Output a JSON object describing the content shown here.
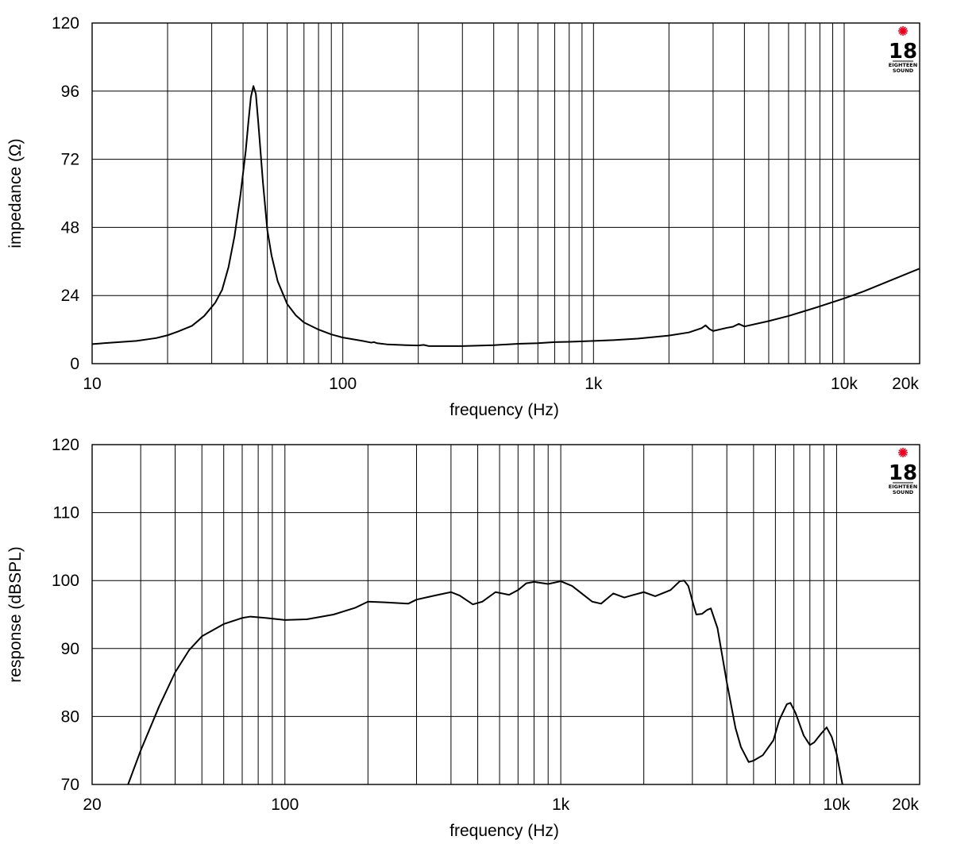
{
  "chart_data": [
    {
      "type": "line",
      "xscale": "log",
      "xlim": [
        10,
        20000
      ],
      "ylim": [
        0,
        120
      ],
      "xlabel": "frequency (Hz)",
      "ylabel": "impedance (Ω)",
      "x_ticks": [
        {
          "value": 10,
          "label": "10"
        },
        {
          "value": 100,
          "label": "100"
        },
        {
          "value": 1000,
          "label": "1k"
        },
        {
          "value": 10000,
          "label": "10k"
        },
        {
          "value": 20000,
          "label": "20k"
        }
      ],
      "y_ticks": [
        {
          "value": 0,
          "label": "0"
        },
        {
          "value": 24,
          "label": "24"
        },
        {
          "value": 48,
          "label": "48"
        },
        {
          "value": 72,
          "label": "72"
        },
        {
          "value": 96,
          "label": "96"
        },
        {
          "value": 120,
          "label": "120"
        }
      ],
      "grid": true,
      "series": [
        {
          "color": "#000000",
          "points": [
            [
              10,
              6.9
            ],
            [
              12,
              7.4
            ],
            [
              15,
              8.0
            ],
            [
              18,
              9.0
            ],
            [
              20,
              10.0
            ],
            [
              22,
              11.3
            ],
            [
              25,
              13.3
            ],
            [
              28,
              16.8
            ],
            [
              31,
              21.5
            ],
            [
              33,
              26.0
            ],
            [
              35,
              34.0
            ],
            [
              37,
              45.0
            ],
            [
              39,
              59.0
            ],
            [
              41,
              75.0
            ],
            [
              42,
              85.0
            ],
            [
              43,
              94.0
            ],
            [
              44,
              97.8
            ],
            [
              45,
              95.0
            ],
            [
              46,
              85.0
            ],
            [
              48,
              64.0
            ],
            [
              50,
              47.0
            ],
            [
              52,
              38.0
            ],
            [
              55,
              29.0
            ],
            [
              60,
              21.0
            ],
            [
              65,
              17.0
            ],
            [
              70,
              14.5
            ],
            [
              80,
              12.0
            ],
            [
              90,
              10.3
            ],
            [
              100,
              9.2
            ],
            [
              120,
              8.0
            ],
            [
              130,
              7.4
            ],
            [
              133,
              7.6
            ],
            [
              137,
              7.2
            ],
            [
              150,
              6.8
            ],
            [
              180,
              6.5
            ],
            [
              200,
              6.4
            ],
            [
              210,
              6.6
            ],
            [
              220,
              6.2
            ],
            [
              300,
              6.2
            ],
            [
              400,
              6.5
            ],
            [
              500,
              7.0
            ],
            [
              600,
              7.2
            ],
            [
              700,
              7.6
            ],
            [
              800,
              7.7
            ],
            [
              1000,
              8.0
            ],
            [
              1200,
              8.3
            ],
            [
              1500,
              8.8
            ],
            [
              2000,
              9.9
            ],
            [
              2400,
              11.0
            ],
            [
              2700,
              12.5
            ],
            [
              2800,
              13.5
            ],
            [
              2900,
              12.2
            ],
            [
              3000,
              11.5
            ],
            [
              3400,
              12.6
            ],
            [
              3600,
              13.0
            ],
            [
              3800,
              14.0
            ],
            [
              4000,
              13.1
            ],
            [
              5000,
              15.0
            ],
            [
              6000,
              16.8
            ],
            [
              7000,
              18.6
            ],
            [
              8000,
              20.2
            ],
            [
              10000,
              23.0
            ],
            [
              12000,
              25.5
            ],
            [
              15000,
              29.0
            ],
            [
              20000,
              33.5
            ]
          ]
        }
      ],
      "logo": {
        "number": "18",
        "line1": "EIGHTEEN",
        "line2": "SOUND",
        "star_color": "#e8001c"
      }
    },
    {
      "type": "line",
      "xscale": "log",
      "xlim": [
        20,
        20000
      ],
      "ylim": [
        70,
        120
      ],
      "xlabel": "frequency (Hz)",
      "ylabel": "response (dBSPL)",
      "x_ticks": [
        {
          "value": 20,
          "label": "20"
        },
        {
          "value": 100,
          "label": "100"
        },
        {
          "value": 1000,
          "label": "1k"
        },
        {
          "value": 10000,
          "label": "10k"
        },
        {
          "value": 20000,
          "label": "20k"
        }
      ],
      "y_ticks": [
        {
          "value": 70,
          "label": "70"
        },
        {
          "value": 80,
          "label": "80"
        },
        {
          "value": 90,
          "label": "90"
        },
        {
          "value": 100,
          "label": "100"
        },
        {
          "value": 110,
          "label": "110"
        },
        {
          "value": 120,
          "label": "120"
        }
      ],
      "grid": true,
      "series": [
        {
          "color": "#000000",
          "points": [
            [
              27,
              70.0
            ],
            [
              30,
              75.0
            ],
            [
              35,
              81.5
            ],
            [
              40,
              86.5
            ],
            [
              45,
              89.8
            ],
            [
              50,
              91.8
            ],
            [
              60,
              93.6
            ],
            [
              70,
              94.5
            ],
            [
              75,
              94.7
            ],
            [
              85,
              94.5
            ],
            [
              100,
              94.2
            ],
            [
              120,
              94.3
            ],
            [
              150,
              95.0
            ],
            [
              180,
              96.0
            ],
            [
              200,
              96.9
            ],
            [
              230,
              96.8
            ],
            [
              280,
              96.6
            ],
            [
              300,
              97.2
            ],
            [
              350,
              97.8
            ],
            [
              400,
              98.3
            ],
            [
              430,
              97.8
            ],
            [
              480,
              96.5
            ],
            [
              520,
              96.9
            ],
            [
              580,
              98.3
            ],
            [
              650,
              97.9
            ],
            [
              700,
              98.6
            ],
            [
              750,
              99.6
            ],
            [
              800,
              99.8
            ],
            [
              900,
              99.5
            ],
            [
              1000,
              99.9
            ],
            [
              1100,
              99.2
            ],
            [
              1200,
              98.0
            ],
            [
              1300,
              96.9
            ],
            [
              1400,
              96.6
            ],
            [
              1550,
              98.1
            ],
            [
              1700,
              97.5
            ],
            [
              1800,
              97.8
            ],
            [
              2000,
              98.3
            ],
            [
              2200,
              97.7
            ],
            [
              2500,
              98.6
            ],
            [
              2700,
              99.9
            ],
            [
              2800,
              100.0
            ],
            [
              2900,
              99.2
            ],
            [
              3000,
              97.0
            ],
            [
              3100,
              95.0
            ],
            [
              3250,
              95.1
            ],
            [
              3400,
              95.7
            ],
            [
              3500,
              95.9
            ],
            [
              3700,
              93.0
            ],
            [
              4000,
              85.0
            ],
            [
              4300,
              78.3
            ],
            [
              4500,
              75.5
            ],
            [
              4800,
              73.3
            ],
            [
              5000,
              73.5
            ],
            [
              5400,
              74.3
            ],
            [
              5900,
              76.5
            ],
            [
              6200,
              79.5
            ],
            [
              6600,
              81.8
            ],
            [
              6800,
              82.0
            ],
            [
              7100,
              80.5
            ],
            [
              7600,
              77.2
            ],
            [
              8000,
              75.8
            ],
            [
              8300,
              76.2
            ],
            [
              8800,
              77.5
            ],
            [
              9200,
              78.4
            ],
            [
              9600,
              77.0
            ],
            [
              10000,
              74.5
            ],
            [
              10500,
              70.0
            ]
          ]
        }
      ],
      "logo": {
        "number": "18",
        "line1": "EIGHTEEN",
        "line2": "SOUND",
        "star_color": "#e8001c"
      }
    }
  ]
}
